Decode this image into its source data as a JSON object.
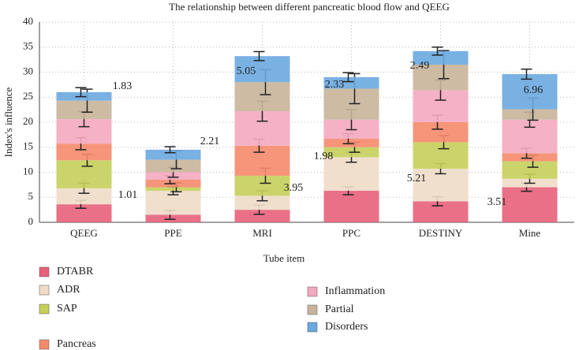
{
  "chart_data": {
    "type": "bar",
    "stacked": true,
    "title": "The relationship between different pancreatic blood flow and QEEG",
    "x_label": "Tube item",
    "y_label": "Index's influence",
    "categories": [
      "QEEG",
      "PPE",
      "MRI",
      "PPC",
      "DESTINY",
      "Mine"
    ],
    "ylim": [
      0,
      40
    ],
    "yticks": [
      0,
      5,
      10,
      15,
      20,
      25,
      30,
      35,
      40
    ],
    "grid": true,
    "series": [
      {
        "name": "DTABR",
        "color": "#e8607a",
        "values": [
          3.6,
          1.5,
          2.5,
          6.3,
          4.2,
          7.0
        ],
        "errors": [
          0.8,
          0.9,
          0.9,
          0.8,
          0.9,
          0.8
        ]
      },
      {
        "name": "ADR",
        "color": "#f0dcc8",
        "values": [
          3.2,
          4.8,
          2.8,
          6.7,
          6.5,
          1.7
        ],
        "errors": [
          1.0,
          0.8,
          1.0,
          1.0,
          1.0,
          0.9
        ]
      },
      {
        "name": "SAP",
        "color": "#c5cf5a",
        "values": [
          5.6,
          0.7,
          4.0,
          2.0,
          5.3,
          3.5
        ],
        "errors": [
          1.2,
          0.9,
          1.5,
          1.0,
          1.3,
          1.2
        ]
      },
      {
        "name": "Pancreas",
        "color": "#f58a6a",
        "values": [
          3.3,
          1.5,
          6.0,
          1.7,
          4.0,
          1.6
        ],
        "errors": [
          1.2,
          0.8,
          1.3,
          1.0,
          1.4,
          1.0
        ]
      },
      {
        "name": "Inflammation",
        "color": "#f4a9c0",
        "values": [
          4.9,
          1.5,
          6.9,
          3.8,
          6.4,
          6.7
        ],
        "errors": [
          1.5,
          1.0,
          2.0,
          2.0,
          2.0,
          1.5
        ]
      },
      {
        "name": "Partial",
        "color": "#c8b49a",
        "values": [
          3.7,
          2.5,
          5.8,
          6.2,
          5.1,
          2.1
        ],
        "errors": [
          2.3,
          1.8,
          2.5,
          3.0,
          2.8,
          2.2
        ]
      },
      {
        "name": "Disorders",
        "color": "#6aa8e0",
        "values": [
          1.7,
          2.0,
          5.2,
          2.3,
          2.7,
          7.0
        ],
        "errors": [
          0.9,
          0.6,
          0.9,
          0.9,
          0.8,
          1.0
        ]
      }
    ],
    "annotations": [
      "1.83",
      "1.01",
      "2.21",
      "5.05",
      "3.95",
      "2.33",
      "1.98",
      "2.49",
      "5.21",
      "3.51",
      "6.96"
    ]
  }
}
